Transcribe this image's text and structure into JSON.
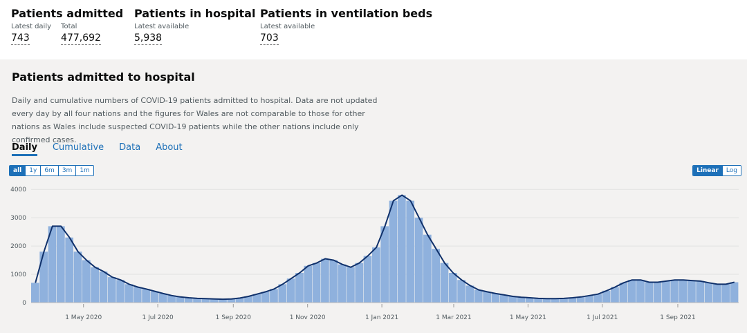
{
  "headline": [
    {
      "title": "Patients admitted",
      "metrics": [
        {
          "label": "Latest daily",
          "value": "743"
        },
        {
          "label": "Total",
          "value": "477,692"
        }
      ]
    },
    {
      "title": "Patients in hospital",
      "metrics": [
        {
          "label": "Latest available",
          "value": "5,938"
        }
      ]
    },
    {
      "title": "Patients in ventilation beds",
      "metrics": [
        {
          "label": "Latest available",
          "value": "703"
        }
      ]
    }
  ],
  "card": {
    "title": "Patients admitted to hospital",
    "description": "Daily and cumulative numbers of COVID-19 patients admitted to hospital. Data are not updated every day by all four nations and the figures for Wales are not comparable to those for other nations as Wales include suspected COVID-19 patients while the other nations include only confirmed cases.",
    "tabs": [
      "Daily",
      "Cumulative",
      "Data",
      "About"
    ],
    "range_buttons": [
      "all",
      "1y",
      "6m",
      "3m",
      "1m"
    ],
    "scale_buttons": [
      "Linear",
      "Log"
    ]
  },
  "chart_data": {
    "type": "bar",
    "x": [
      "2020-03-19",
      "2020-03-26",
      "2020-04-02",
      "2020-04-09",
      "2020-04-16",
      "2020-04-23",
      "2020-04-30",
      "2020-05-07",
      "2020-05-14",
      "2020-05-21",
      "2020-05-28",
      "2020-06-04",
      "2020-06-11",
      "2020-06-18",
      "2020-06-25",
      "2020-07-02",
      "2020-07-09",
      "2020-07-16",
      "2020-07-23",
      "2020-07-30",
      "2020-08-06",
      "2020-08-13",
      "2020-08-20",
      "2020-08-27",
      "2020-09-03",
      "2020-09-10",
      "2020-09-17",
      "2020-09-24",
      "2020-10-01",
      "2020-10-08",
      "2020-10-15",
      "2020-10-22",
      "2020-10-29",
      "2020-11-05",
      "2020-11-12",
      "2020-11-19",
      "2020-11-26",
      "2020-12-03",
      "2020-12-10",
      "2020-12-17",
      "2020-12-24",
      "2020-12-31",
      "2021-01-07",
      "2021-01-14",
      "2021-01-21",
      "2021-01-28",
      "2021-02-04",
      "2021-02-11",
      "2021-02-18",
      "2021-02-25",
      "2021-03-04",
      "2021-03-11",
      "2021-03-18",
      "2021-03-25",
      "2021-04-01",
      "2021-04-08",
      "2021-04-15",
      "2021-04-22",
      "2021-04-29",
      "2021-05-06",
      "2021-05-13",
      "2021-05-20",
      "2021-05-27",
      "2021-06-03",
      "2021-06-10",
      "2021-06-17",
      "2021-06-24",
      "2021-07-01",
      "2021-07-08",
      "2021-07-15",
      "2021-07-22",
      "2021-07-29",
      "2021-08-05",
      "2021-08-12",
      "2021-08-19",
      "2021-08-26",
      "2021-09-02",
      "2021-09-09",
      "2021-09-16",
      "2021-09-23",
      "2021-09-30",
      "2021-10-07",
      "2021-10-14"
    ],
    "values": [
      700,
      1800,
      2700,
      2700,
      2300,
      1800,
      1500,
      1250,
      1100,
      900,
      800,
      650,
      550,
      480,
      400,
      320,
      250,
      200,
      170,
      150,
      140,
      130,
      120,
      130,
      160,
      220,
      300,
      380,
      480,
      650,
      850,
      1050,
      1300,
      1400,
      1550,
      1500,
      1350,
      1250,
      1400,
      1650,
      1950,
      2700,
      3600,
      3800,
      3600,
      3000,
      2400,
      1900,
      1400,
      1050,
      800,
      600,
      450,
      380,
      320,
      270,
      220,
      190,
      170,
      150,
      140,
      140,
      150,
      170,
      200,
      250,
      300,
      420,
      550,
      700,
      800,
      800,
      720,
      720,
      760,
      800,
      800,
      780,
      760,
      700,
      650,
      650,
      720
    ],
    "color": "#8fb1dd",
    "line_color": "#10316b",
    "xlim": [
      "2020-03-19",
      "2021-10-21"
    ],
    "xticks": [
      {
        "value": "2020-05-01",
        "label": "1 May 2020"
      },
      {
        "value": "2020-07-01",
        "label": "1 Jul 2020"
      },
      {
        "value": "2020-09-01",
        "label": "1 Sep 2020"
      },
      {
        "value": "2020-11-01",
        "label": "1 Nov 2020"
      },
      {
        "value": "2021-01-01",
        "label": "1 Jan 2021"
      },
      {
        "value": "2021-03-01",
        "label": "1 Mar 2021"
      },
      {
        "value": "2021-05-01",
        "label": "1 May 2021"
      },
      {
        "value": "2021-07-01",
        "label": "1 Jul 2021"
      },
      {
        "value": "2021-09-01",
        "label": "1 Sep 2021"
      }
    ],
    "ylim": [
      0,
      4200
    ],
    "yticks": [
      0,
      1000,
      2000,
      3000,
      4000
    ],
    "grid": true
  }
}
